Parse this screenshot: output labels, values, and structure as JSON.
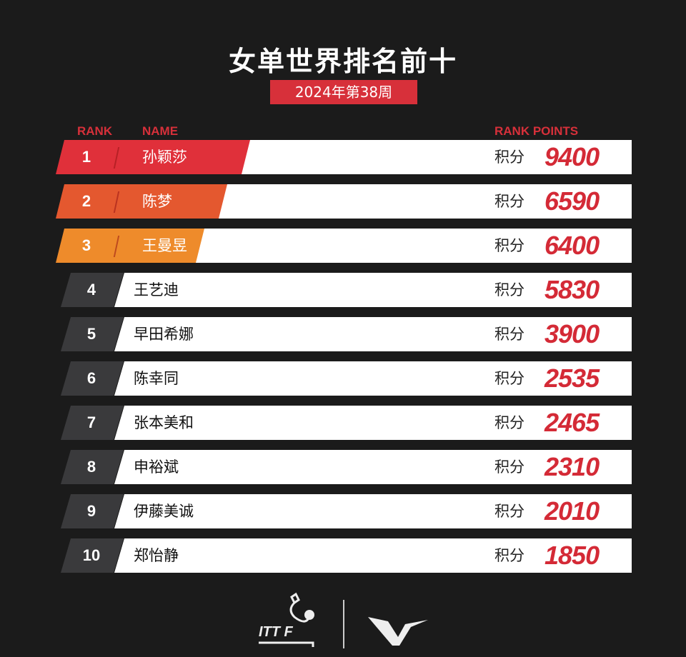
{
  "title": "女单世界排名前十",
  "subtitle": "2024年第38周",
  "headers": {
    "rank": "RANK",
    "name": "NAME",
    "points": "RANK POINTS"
  },
  "points_label": "积分",
  "colors": {
    "top1": "#e0303a",
    "top2": "#e4582f",
    "top3": "#ee8b2b",
    "rest": "#3a3a3c",
    "points": "#d42a36"
  },
  "rows": [
    {
      "rank": "1",
      "name": "孙颖莎",
      "points": "9400"
    },
    {
      "rank": "2",
      "name": "陈梦",
      "points": "6590"
    },
    {
      "rank": "3",
      "name": "王曼昱",
      "points": "6400"
    },
    {
      "rank": "4",
      "name": "王艺迪",
      "points": "5830"
    },
    {
      "rank": "5",
      "name": "早田希娜",
      "points": "3900"
    },
    {
      "rank": "6",
      "name": "陈幸同",
      "points": "2535"
    },
    {
      "rank": "7",
      "name": "张本美和",
      "points": "2465"
    },
    {
      "rank": "8",
      "name": "申裕斌",
      "points": "2310"
    },
    {
      "rank": "9",
      "name": "伊藤美诚",
      "points": "2010"
    },
    {
      "rank": "10",
      "name": "郑怡静",
      "points": "1850"
    }
  ],
  "logos": {
    "itttf": "ITTF",
    "wtt": "WTT"
  }
}
